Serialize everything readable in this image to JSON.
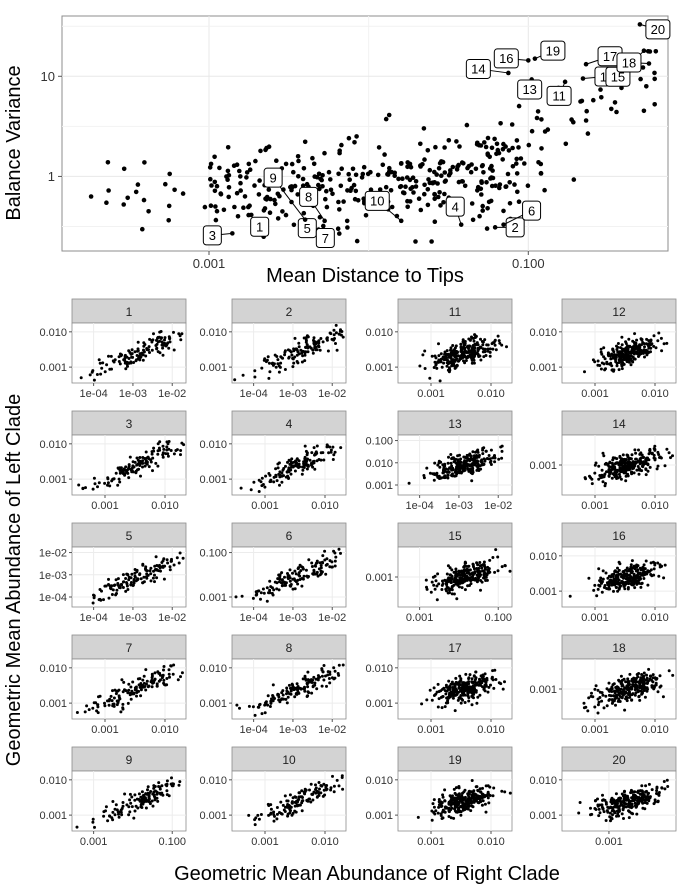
{
  "top_panel": {
    "xlabel": "Mean Distance to Tips",
    "ylabel": "Balance Variance",
    "xticks": [
      "0.001",
      "0.100"
    ],
    "yticks": [
      "1",
      "10"
    ],
    "labels": [
      "1",
      "2",
      "3",
      "4",
      "5",
      "6",
      "7",
      "8",
      "9",
      "10",
      "11",
      "12",
      "13",
      "14",
      "15",
      "16",
      "17",
      "18",
      "19",
      "20"
    ]
  },
  "facets": {
    "xlabel": "Geometric Mean Abundance of Right Clade",
    "ylabel": "Geometric Mean Abundance of Left Clade",
    "panels": [
      {
        "label": "1",
        "xticks": [
          "1e-04",
          "1e-03",
          "1e-02"
        ],
        "yticks": [
          "0.001",
          "0.010"
        ]
      },
      {
        "label": "2",
        "xticks": [
          "1e-04",
          "1e-03",
          "1e-02"
        ],
        "yticks": [
          "0.001",
          "0.010"
        ]
      },
      {
        "label": "11",
        "xticks": [
          "0.001",
          "0.010"
        ],
        "yticks": [
          "0.001",
          "0.010"
        ]
      },
      {
        "label": "12",
        "xticks": [
          "0.001",
          "0.010"
        ],
        "yticks": [
          "0.001",
          "0.010"
        ]
      },
      {
        "label": "3",
        "xticks": [
          "0.001",
          "0.010"
        ],
        "yticks": [
          "0.001",
          "0.010"
        ]
      },
      {
        "label": "4",
        "xticks": [
          "0.001",
          "0.010"
        ],
        "yticks": [
          "0.001",
          "0.010"
        ]
      },
      {
        "label": "13",
        "xticks": [
          "1e-04",
          "1e-03",
          "1e-02"
        ],
        "yticks": [
          "0.001",
          "0.010",
          "0.100"
        ]
      },
      {
        "label": "14",
        "xticks": [
          "0.001",
          "0.010"
        ],
        "yticks": [
          "0.001"
        ]
      },
      {
        "label": "5",
        "xticks": [
          "1e-04",
          "1e-03",
          "1e-02"
        ],
        "yticks": [
          "1e-04",
          "1e-03",
          "1e-02"
        ]
      },
      {
        "label": "6",
        "xticks": [
          "1e-04",
          "1e-03",
          "1e-02"
        ],
        "yticks": [
          "0.001",
          "0.100"
        ]
      },
      {
        "label": "15",
        "xticks": [
          "0.001",
          "0.100"
        ],
        "yticks": [
          "0.001"
        ]
      },
      {
        "label": "16",
        "xticks": [
          "0.001",
          "0.010"
        ],
        "yticks": [
          "0.001",
          "0.010"
        ]
      },
      {
        "label": "7",
        "xticks": [
          "0.001",
          "0.010"
        ],
        "yticks": [
          "0.001",
          "0.010"
        ]
      },
      {
        "label": "8",
        "xticks": [
          "1e-04",
          "1e-03",
          "1e-02"
        ],
        "yticks": [
          "0.001",
          "0.010"
        ]
      },
      {
        "label": "17",
        "xticks": [
          "0.001",
          "0.010"
        ],
        "yticks": [
          "0.001",
          "0.010"
        ]
      },
      {
        "label": "18",
        "xticks": [
          "0.001",
          "0.010"
        ],
        "yticks": [
          "0.001"
        ]
      },
      {
        "label": "9",
        "xticks": [
          "0.001",
          "0.100"
        ],
        "yticks": [
          "0.001",
          "0.010"
        ]
      },
      {
        "label": "10",
        "xticks": [
          "0.001",
          "0.010"
        ],
        "yticks": [
          "0.001",
          "0.010"
        ]
      },
      {
        "label": "19",
        "xticks": [
          "0.001",
          "0.010"
        ],
        "yticks": [
          "0.001",
          "0.010"
        ]
      },
      {
        "label": "20",
        "xticks": [
          "0.001"
        ],
        "yticks": [
          "0.001",
          "0.010"
        ]
      }
    ]
  },
  "chart_data": [
    {
      "type": "scatter",
      "xlabel": "Mean Distance to Tips",
      "ylabel": "Balance Variance",
      "x_scale": "log10",
      "y_scale": "log10",
      "xlim": [
        0.00012,
        0.75
      ],
      "ylim": [
        0.18,
        40
      ],
      "grid": true,
      "point_count": 420,
      "labeled_points": [
        {
          "label": "1",
          "x": 0.0022,
          "y": 0.25
        },
        {
          "label": "2",
          "x": 0.062,
          "y": 0.31
        },
        {
          "label": "3",
          "x": 0.0014,
          "y": 0.27
        },
        {
          "label": "4",
          "x": 0.038,
          "y": 0.33
        },
        {
          "label": "5",
          "x": 0.0045,
          "y": 0.35
        },
        {
          "label": "6",
          "x": 0.07,
          "y": 0.33
        },
        {
          "label": "7",
          "x": 0.0052,
          "y": 0.32
        },
        {
          "label": "8",
          "x": 0.0053,
          "y": 0.36
        },
        {
          "label": "9",
          "x": 0.004,
          "y": 0.37
        },
        {
          "label": "10",
          "x": 0.016,
          "y": 0.36
        },
        {
          "label": "11",
          "x": 0.17,
          "y": 8.8
        },
        {
          "label": "12",
          "x": 0.22,
          "y": 9.5
        },
        {
          "label": "13",
          "x": 0.105,
          "y": 9.3
        },
        {
          "label": "14",
          "x": 0.075,
          "y": 10.8
        },
        {
          "label": "15",
          "x": 0.53,
          "y": 18
        },
        {
          "label": "16",
          "x": 0.1,
          "y": 14.4
        },
        {
          "label": "17",
          "x": 0.23,
          "y": 13.2
        },
        {
          "label": "18",
          "x": 0.57,
          "y": 13.4
        },
        {
          "label": "19",
          "x": 0.11,
          "y": 15
        },
        {
          "label": "20",
          "x": 0.5,
          "y": 33
        }
      ]
    },
    {
      "type": "scatter",
      "title": "",
      "xlabel": "Geometric Mean Abundance of Right Clade",
      "ylabel": "Geometric Mean Abundance of Left Clade",
      "x_scale": "log10",
      "y_scale": "log10",
      "facets": 20,
      "facet_layout": "5 rows x 4 columns",
      "note": "each facet shows a positive correlation between right and left clade abundance"
    }
  ]
}
